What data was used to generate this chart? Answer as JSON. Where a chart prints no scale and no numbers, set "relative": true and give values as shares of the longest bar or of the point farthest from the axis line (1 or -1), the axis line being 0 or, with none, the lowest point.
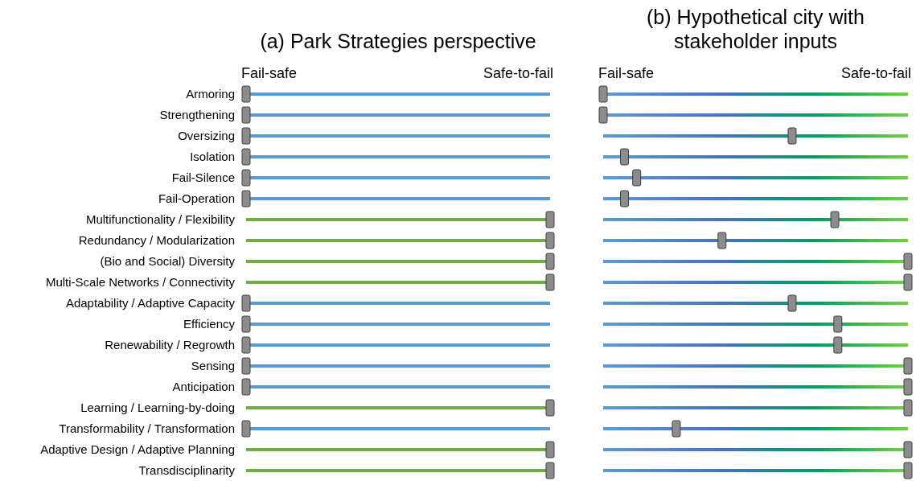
{
  "chart_data": [
    {
      "type": "scatter",
      "title": "(a) Park Strategies perspective",
      "relative": true,
      "orientation": "horizontal",
      "categories": [
        "Armoring",
        "Strengthening",
        "Oversizing",
        "Isolation",
        "Fail-Silence",
        "Fail-Operation",
        "Multifunctionality / Flexibility",
        "Redundancy / Modularization",
        "(Bio and Social) Diversity",
        "Multi-Scale Networks / Connectivity",
        "Adaptability / Adaptive Capacity",
        "Efficiency",
        "Renewability / Regrowth",
        "Sensing",
        "Anticipation",
        "Learning / Learning-by-doing",
        "Transformability / Transformation",
        "Adaptive Design / Adaptive Planning",
        "Transdisciplinarity"
      ],
      "series": [
        {
          "color": "#8c8c8c",
          "values": [
            0,
            0,
            0,
            0,
            0,
            0,
            1,
            1,
            1,
            1,
            0,
            0,
            0,
            0,
            0,
            1,
            0,
            1,
            1
          ]
        }
      ],
      "annotations": [
        "Fail-safe",
        "Safe-to-fail"
      ],
      "marker": "square",
      "grid": "y"
    },
    {
      "type": "scatter",
      "title": "(b) Hypothetical city with stakeholder inputs",
      "relative": true,
      "orientation": "horizontal",
      "categories": [
        null,
        null,
        null,
        null,
        null,
        null,
        null,
        null,
        null,
        null,
        null,
        null,
        null,
        null,
        null,
        null,
        null,
        null,
        null
      ],
      "series": [
        {
          "color": "#8c8c8c",
          "values": [
            0,
            0,
            0.62,
            0.07,
            0.11,
            0.07,
            0.76,
            0.39,
            1,
            1,
            0.62,
            0.77,
            0.77,
            1,
            1,
            1,
            0.24,
            1,
            1
          ]
        }
      ],
      "annotations": [
        "Fail-safe",
        "Safe-to-fail"
      ],
      "marker": "square",
      "grid": "y"
    }
  ]
}
